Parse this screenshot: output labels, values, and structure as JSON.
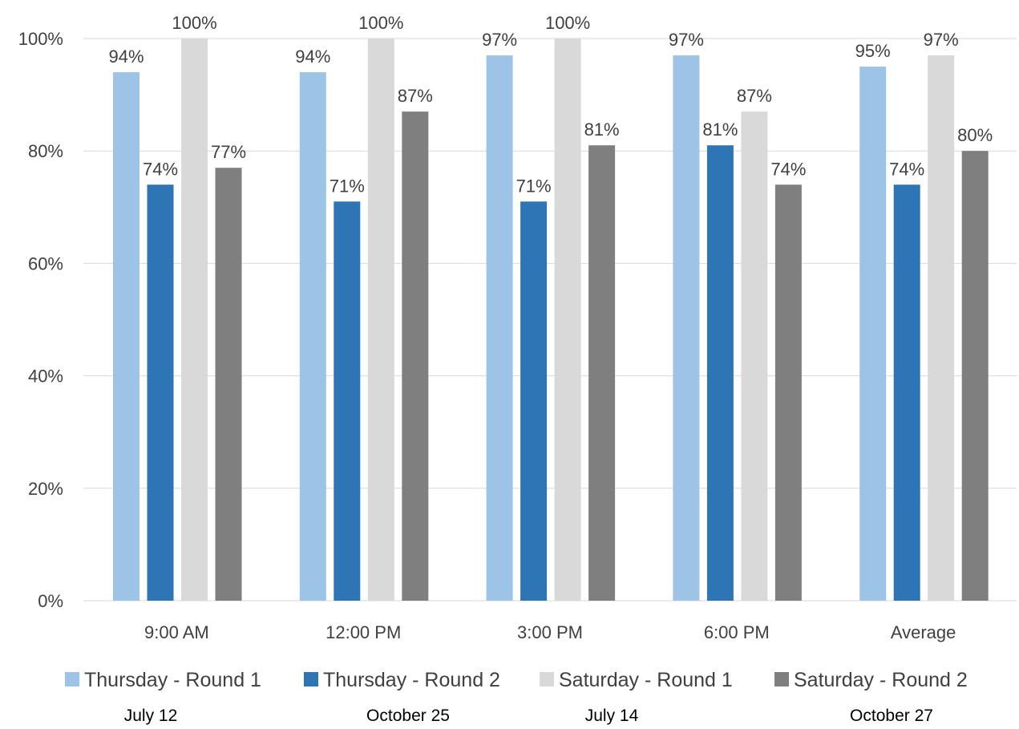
{
  "chart_data": {
    "type": "bar",
    "title": "",
    "xlabel": "",
    "ylabel": "",
    "categories": [
      "9:00 AM",
      "12:00 PM",
      "3:00 PM",
      "6:00 PM",
      "Average"
    ],
    "ylim": [
      0,
      100
    ],
    "yticks": [
      "0%",
      "20%",
      "40%",
      "60%",
      "80%",
      "100%"
    ],
    "grid": true,
    "legend_position": "bottom",
    "series": [
      {
        "name": "Thursday - Round 1",
        "color": "#9DC3E6",
        "values": [
          94,
          94,
          97,
          97,
          95
        ],
        "labels": [
          "94%",
          "94%",
          "97%",
          "97%",
          "95%"
        ]
      },
      {
        "name": "Thursday - Round 2",
        "color": "#2E75B6",
        "values": [
          74,
          71,
          71,
          81,
          74
        ],
        "labels": [
          "74%",
          "71%",
          "71%",
          "81%",
          "74%"
        ]
      },
      {
        "name": "Saturday - Round 1",
        "color": "#D9D9D9",
        "values": [
          100,
          100,
          100,
          87,
          97
        ],
        "labels": [
          "100%",
          "100%",
          "100%",
          "87%",
          "97%"
        ]
      },
      {
        "name": "Saturday - Round 2",
        "color": "#7F7F7F",
        "values": [
          77,
          87,
          81,
          74,
          80
        ],
        "labels": [
          "77%",
          "87%",
          "81%",
          "74%",
          "80%"
        ]
      }
    ],
    "legend_dates": [
      "July 12",
      "October 25",
      "July 14",
      "October 27"
    ]
  }
}
